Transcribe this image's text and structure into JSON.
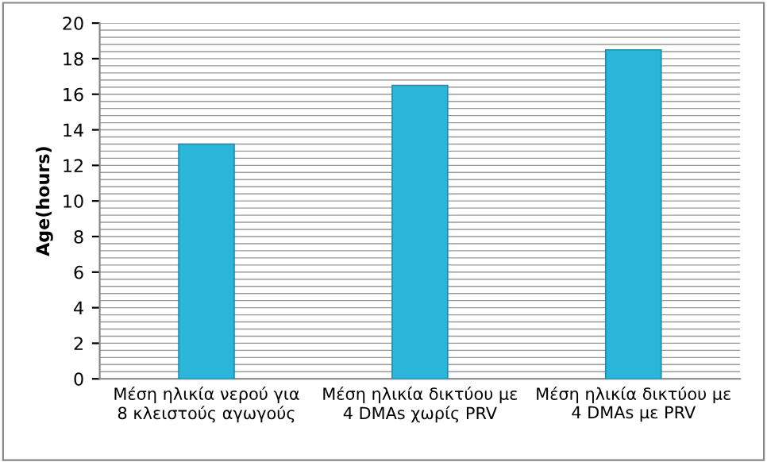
{
  "chart_data": {
    "type": "bar",
    "categories": [
      "Μέση ηλικία νερού για\n8 κλειστούς αγωγούς",
      "Μέση ηλικία δικτύου με\n4 DMAs χωρίς PRV",
      "Μέση ηλικία δικτύου με\n4 DMAs με PRV"
    ],
    "values": [
      13.2,
      16.5,
      18.5
    ],
    "color": "#2bb5d8",
    "ylabel": "Age(hours)",
    "ylim": [
      0,
      20
    ],
    "yticks": [
      0,
      2,
      4,
      6,
      8,
      10,
      12,
      14,
      16,
      18,
      20
    ],
    "grid": "y"
  }
}
